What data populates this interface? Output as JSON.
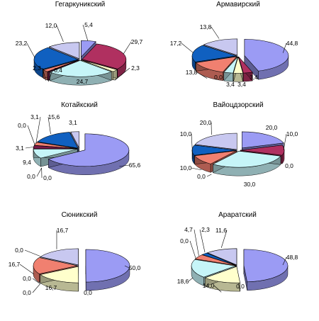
{
  "palette": [
    "#9b9bf4",
    "#b03060",
    "#ffffcc",
    "#c6f5f8",
    "#7a1a4a",
    "#f08070",
    "#1060c0",
    "#c8c8f0"
  ],
  "chart_data": [
    {
      "type": "pie",
      "title": "Гегаркуникский",
      "values": [
        5.4,
        29.7,
        2.3,
        24.7,
        0.4,
        2.3,
        23.2,
        12.0
      ],
      "labels": [
        "5,4",
        "29,7",
        "2,3",
        "24,7",
        "0,4",
        "2,3",
        "23,2",
        "12,0"
      ]
    },
    {
      "type": "pie",
      "title": "Армавирский",
      "values": [
        44.8,
        3.4,
        3.4,
        3.4,
        0.0,
        13.8,
        17.2,
        13.8
      ],
      "labels": [
        "44,8",
        "3,4",
        "3,4",
        "3,4",
        "0,0",
        "13,8",
        "17,2",
        "13,8"
      ]
    },
    {
      "type": "pie",
      "title": "Котайкский",
      "values": [
        65.6,
        0.0,
        0.0,
        9.4,
        3.1,
        0.0,
        3.1,
        15.6,
        3.1
      ],
      "colors": [
        "#9b9bf4",
        "#b03060",
        "#ffffcc",
        "#c6f5f8",
        "#7a1a4a",
        "#c8c8f0",
        "#f08070",
        "#1060c0",
        "#c8c8f0"
      ],
      "labels": [
        "65,6",
        "0,0",
        "0,0",
        "9,4",
        "3,1",
        "0,0",
        "3,1",
        "15,6",
        "3,1"
      ]
    },
    {
      "type": "pie",
      "title": "Вайоцдзорский",
      "values": [
        20.0,
        10.0,
        0.0,
        30.0,
        0.0,
        10.0,
        10.0,
        20.0
      ],
      "labels": [
        "20,0",
        "10,0",
        "0,0",
        "30,0",
        "0,0",
        "10,0",
        "10,0",
        "20,0"
      ]
    },
    {
      "type": "pie",
      "title": "Сюникский",
      "values": [
        50.0,
        0.0,
        16.7,
        0.0,
        0.0,
        16.7,
        0.0,
        16.7
      ],
      "labels": [
        "50,0",
        "0,0",
        "16,7",
        "0,0",
        "0,0",
        "16,7",
        "0,0",
        "16,7"
      ]
    },
    {
      "type": "pie",
      "title": "Араратский",
      "values": [
        48.8,
        0.0,
        14.0,
        18.6,
        0.0,
        4.7,
        2.3,
        11.6
      ],
      "labels": [
        "48,8",
        "0,0",
        "14,0",
        "18,6",
        "0,0",
        "4,7",
        "2,3",
        "11,6"
      ]
    }
  ]
}
